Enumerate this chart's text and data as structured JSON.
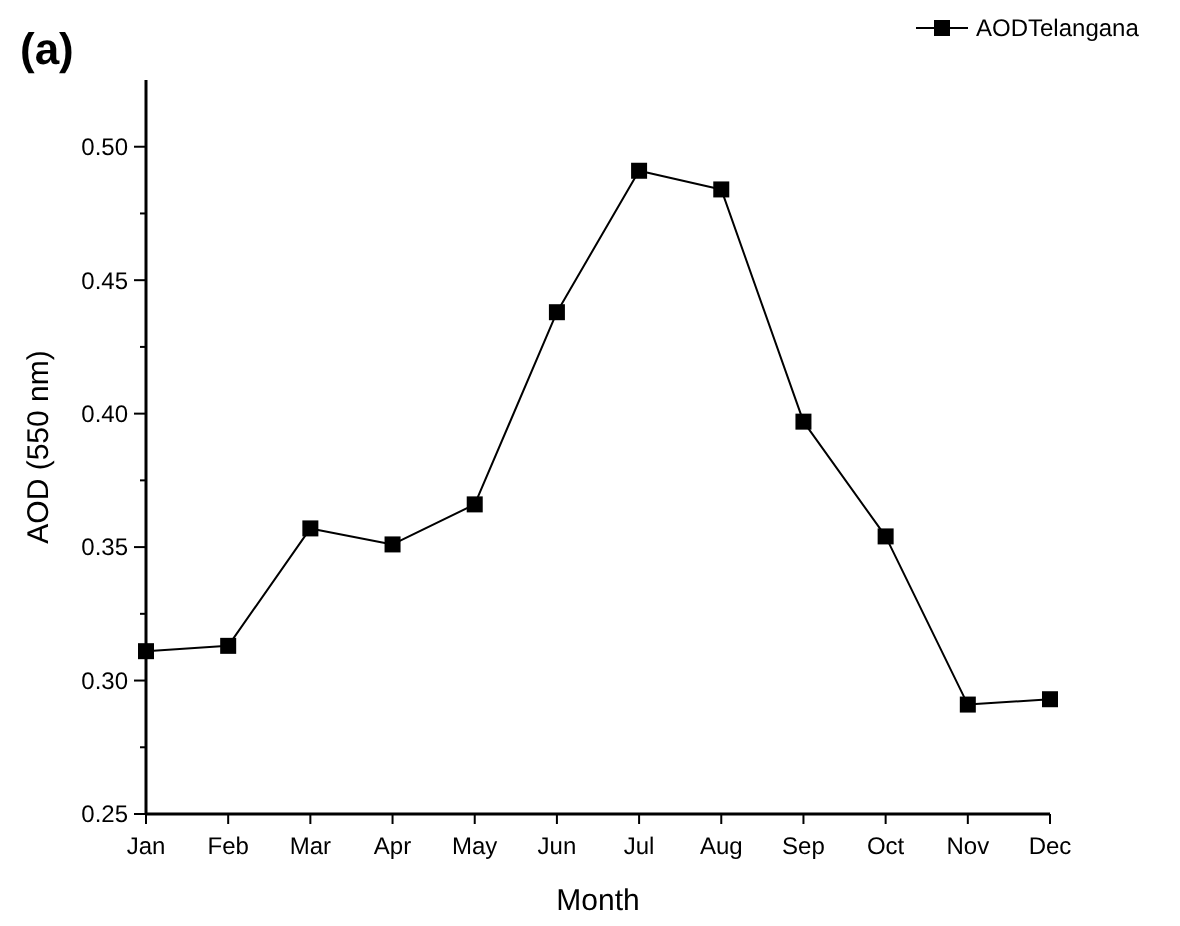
{
  "chart_data": {
    "type": "line",
    "title": "(a)",
    "xlabel": "Month",
    "ylabel": "AOD (550 nm)",
    "categories": [
      "Jan",
      "Feb",
      "Mar",
      "Apr",
      "May",
      "Jun",
      "Jul",
      "Aug",
      "Sep",
      "Oct",
      "Nov",
      "Dec"
    ],
    "series": [
      {
        "name": "AODTelangana",
        "color": "#000000",
        "values": [
          0.311,
          0.313,
          0.357,
          0.351,
          0.366,
          0.438,
          0.491,
          0.484,
          0.397,
          0.354,
          0.291,
          0.293
        ]
      }
    ],
    "ylim": [
      0.25,
      0.525
    ],
    "yticks": [
      {
        "value": 0.25,
        "label": "0.25"
      },
      {
        "value": 0.275,
        "label": null
      },
      {
        "value": 0.3,
        "label": "0.30"
      },
      {
        "value": 0.325,
        "label": null
      },
      {
        "value": 0.35,
        "label": "0.35"
      },
      {
        "value": 0.375,
        "label": null
      },
      {
        "value": 0.4,
        "label": "0.40"
      },
      {
        "value": 0.425,
        "label": null
      },
      {
        "value": 0.45,
        "label": "0.45"
      },
      {
        "value": 0.475,
        "label": null
      },
      {
        "value": 0.5,
        "label": "0.50"
      }
    ],
    "marker": "square",
    "line_style": "solid",
    "legend": "top right",
    "grid": false
  }
}
